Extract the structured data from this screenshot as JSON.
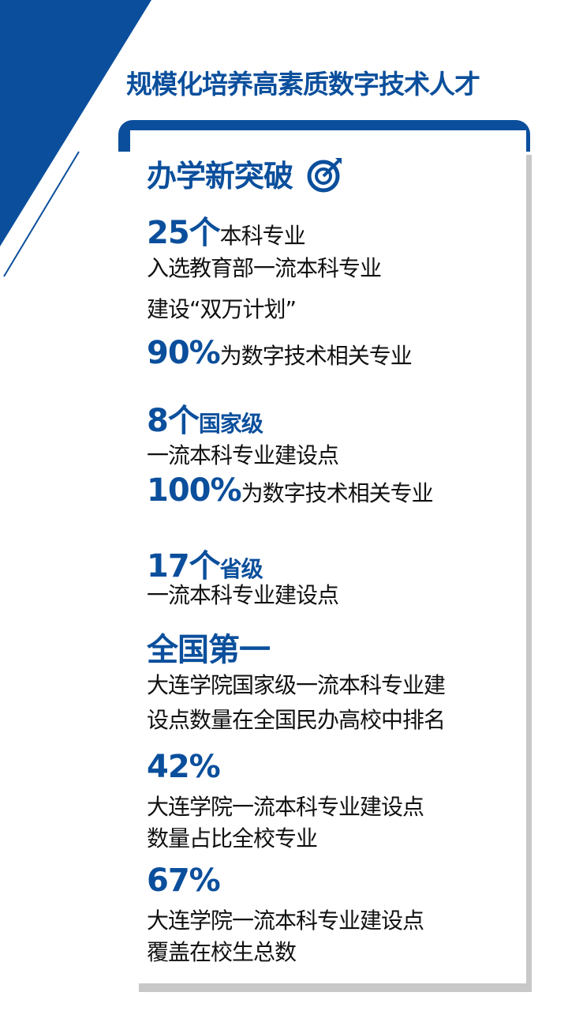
{
  "title": "规模化培养高素质数字技术人才",
  "heading": "办学新突破",
  "heading_icon": "target-icon",
  "accent": "#0b4f9c",
  "stats": [
    {
      "num": "25个",
      "unit": "本科专业",
      "lines": [
        "入选教育部一流本科专业",
        "建设“双万计划”"
      ]
    },
    {
      "num": "90%",
      "unit": "为数字技术相关专业"
    },
    {
      "num": "8个",
      "unit": "国家级",
      "lines": [
        "一流本科专业建设点"
      ]
    },
    {
      "num": "100%",
      "unit": "为数字技术相关专业"
    },
    {
      "num": "17个",
      "unit": "省级",
      "lines": [
        "一流本科专业建设点"
      ]
    },
    {
      "num": "全国第一",
      "lines": [
        "大连学院国家级一流本科专业建",
        "设点数量在全国民办高校中排名"
      ]
    },
    {
      "num": "42%",
      "lines": [
        "大连学院一流本科专业建设点",
        "数量占比全校专业"
      ]
    },
    {
      "num": "67%",
      "lines": [
        "大连学院一流本科专业建设点",
        "覆盖在校生总数"
      ]
    }
  ]
}
